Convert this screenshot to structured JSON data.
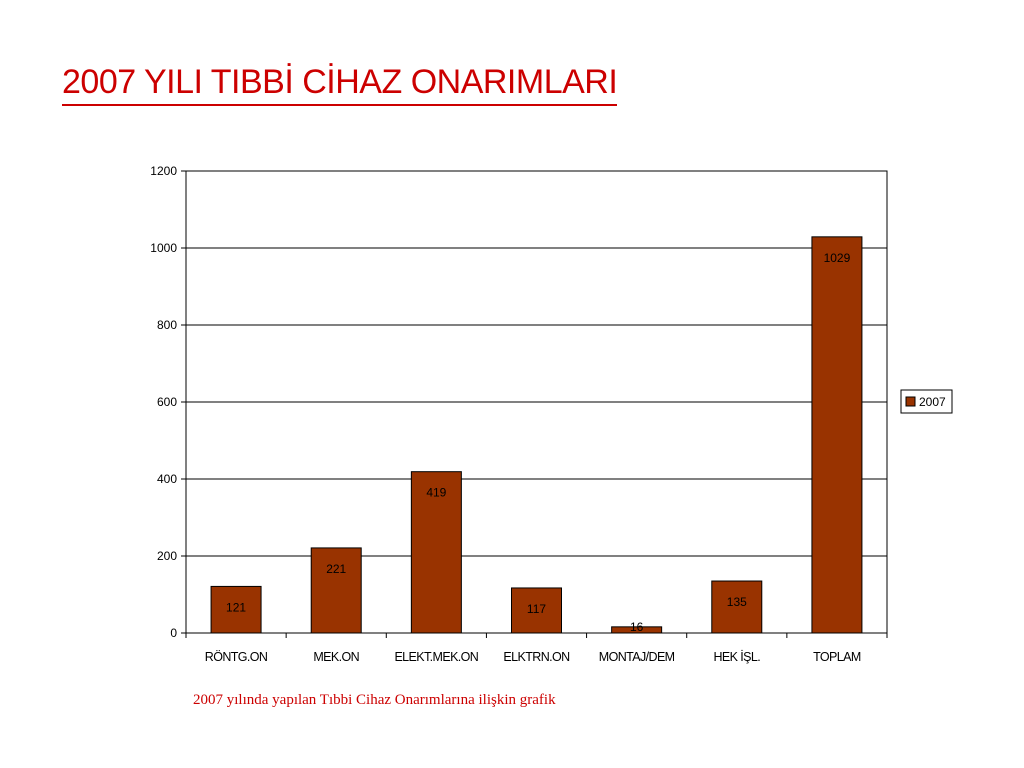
{
  "slide": {
    "title": "2007 YILI TIBBİ CİHAZ ONARIMLARI",
    "caption": "2007 yılında yapılan Tıbbi Cihaz Onarımlarına ilişkin grafik"
  },
  "colors": {
    "title": "#cc0000",
    "bar_fill": "#993300",
    "bar_stroke": "#000000",
    "gridline": "#000000"
  },
  "chart_data": {
    "type": "bar",
    "categories": [
      "RÖNTG.ON",
      "MEK.ON",
      "ELEKT.MEK.ON",
      "ELKTRN.ON",
      "MONTAJ/DEM",
      "HEK İŞL.",
      "TOPLAM"
    ],
    "series": [
      {
        "name": "2007",
        "values": [
          121,
          221,
          419,
          117,
          16,
          135,
          1029
        ]
      }
    ],
    "ylim": [
      0,
      1200
    ],
    "yticks": [
      0,
      200,
      400,
      600,
      800,
      1000,
      1200
    ],
    "grid": true,
    "legend": "right",
    "data_labels": true
  }
}
